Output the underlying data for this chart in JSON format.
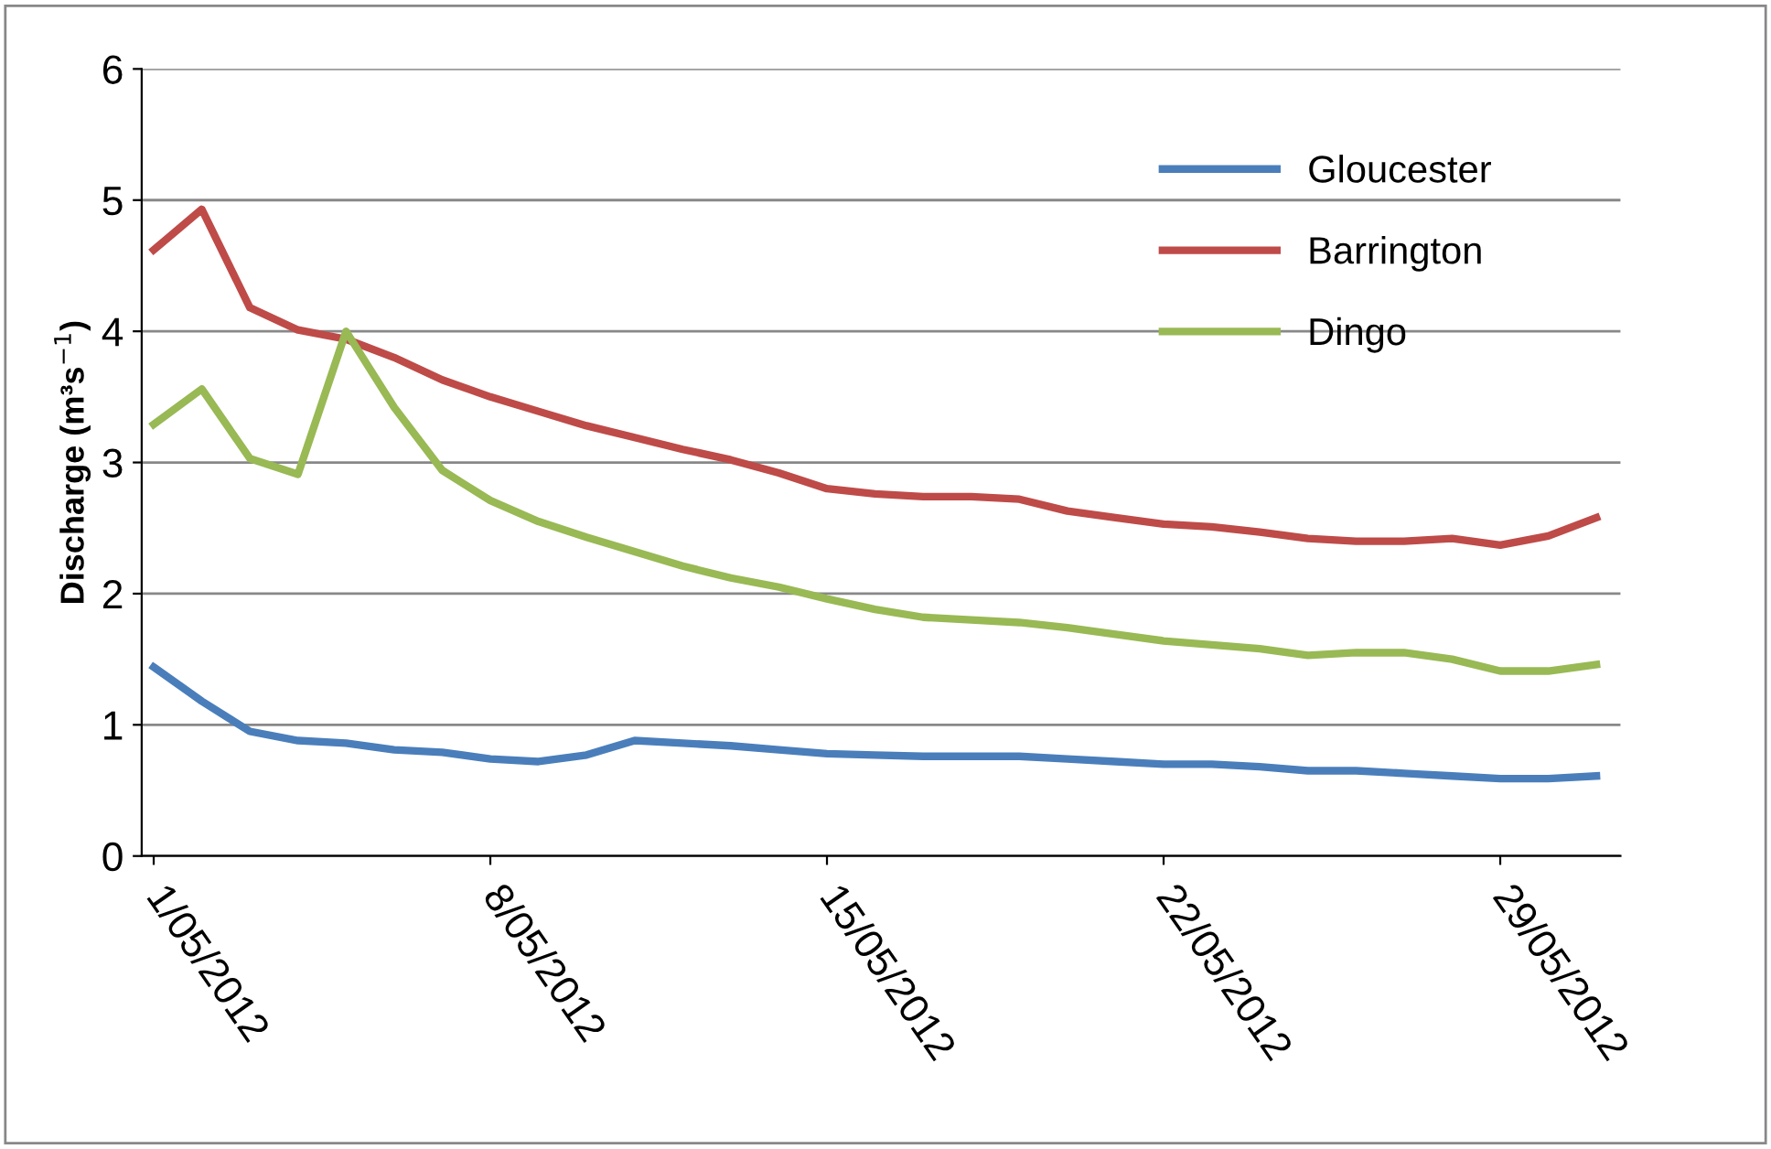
{
  "chart_data": {
    "type": "line",
    "ylabel": "Discharge (m³s$^{−1}$)",
    "x": [
      "2012-05-01",
      "2012-05-02",
      "2012-05-03",
      "2012-05-04",
      "2012-05-05",
      "2012-05-06",
      "2012-05-07",
      "2012-05-08",
      "2012-05-09",
      "2012-05-10",
      "2012-05-11",
      "2012-05-12",
      "2012-05-13",
      "2012-05-14",
      "2012-05-15",
      "2012-05-16",
      "2012-05-17",
      "2012-05-18",
      "2012-05-19",
      "2012-05-20",
      "2012-05-21",
      "2012-05-22",
      "2012-05-23",
      "2012-05-24",
      "2012-05-25",
      "2012-05-26",
      "2012-05-27",
      "2012-05-28",
      "2012-05-29",
      "2012-05-30",
      "2012-05-31"
    ],
    "series": [
      {
        "name": "Gloucester",
        "color": "#4a7ebb",
        "values": [
          1.44,
          1.18,
          0.95,
          0.88,
          0.86,
          0.81,
          0.79,
          0.74,
          0.72,
          0.77,
          0.88,
          0.86,
          0.84,
          0.81,
          0.78,
          0.77,
          0.76,
          0.76,
          0.76,
          0.74,
          0.72,
          0.7,
          0.7,
          0.68,
          0.65,
          0.65,
          0.63,
          0.61,
          0.59,
          0.59,
          0.61
        ]
      },
      {
        "name": "Barrington",
        "color": "#be4b48",
        "values": [
          4.62,
          4.93,
          4.18,
          4.01,
          3.94,
          3.8,
          3.63,
          3.5,
          3.39,
          3.28,
          3.19,
          3.1,
          3.02,
          2.92,
          2.8,
          2.76,
          2.74,
          2.74,
          2.72,
          2.63,
          2.58,
          2.53,
          2.51,
          2.47,
          2.42,
          2.4,
          2.4,
          2.42,
          2.37,
          2.44,
          2.58
        ]
      },
      {
        "name": "Dingo",
        "color": "#98b954",
        "values": [
          3.29,
          3.56,
          3.03,
          2.91,
          4.0,
          3.42,
          2.94,
          2.71,
          2.55,
          2.43,
          2.32,
          2.21,
          2.12,
          2.05,
          1.96,
          1.88,
          1.82,
          1.8,
          1.78,
          1.74,
          1.69,
          1.64,
          1.61,
          1.58,
          1.53,
          1.55,
          1.55,
          1.5,
          1.41,
          1.41,
          1.46
        ]
      }
    ],
    "xlim": [
      "2012-04-30T18:00",
      "2012-05-31T12:00"
    ],
    "xticks": [
      {
        "value": "2012-05-01",
        "label": "1/05/2012"
      },
      {
        "value": "2012-05-08",
        "label": "8/05/2012"
      },
      {
        "value": "2012-05-15",
        "label": "15/05/2012"
      },
      {
        "value": "2012-05-22",
        "label": "22/05/2012"
      },
      {
        "value": "2012-05-29",
        "label": "29/05/2012"
      }
    ],
    "ylim": [
      0,
      6
    ],
    "yticks": [
      0,
      1,
      2,
      3,
      4,
      5,
      6
    ],
    "grid": "y",
    "legend": "top right",
    "marker": "none",
    "line_style": "solid"
  }
}
